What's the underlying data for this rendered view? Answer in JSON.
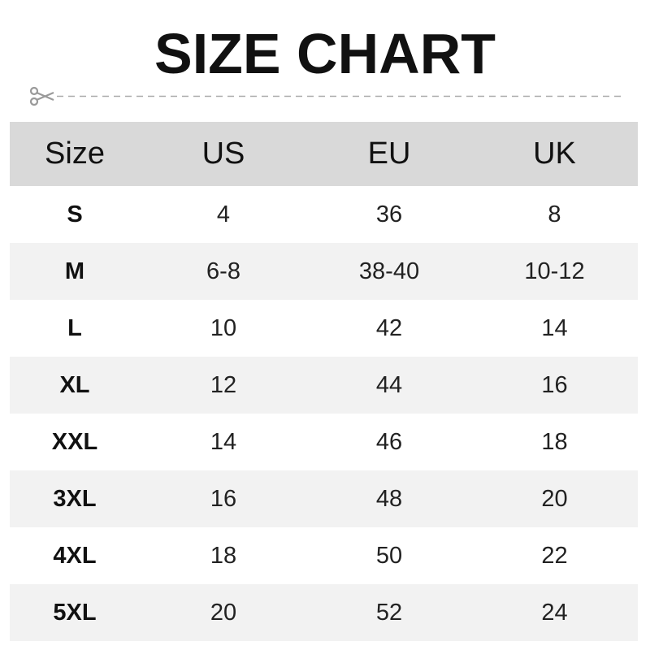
{
  "title": "SIZE CHART",
  "cut_line_icon": "scissors-icon",
  "colors": {
    "header_bg": "#d9d9d9",
    "alt_row_bg": "#f2f2f2",
    "dash": "#aaaaaa"
  },
  "table": {
    "headers": [
      "Size",
      "US",
      "EU",
      "UK"
    ],
    "rows": [
      [
        "S",
        "4",
        "36",
        "8"
      ],
      [
        "M",
        "6-8",
        "38-40",
        "10-12"
      ],
      [
        "L",
        "10",
        "42",
        "14"
      ],
      [
        "XL",
        "12",
        "44",
        "16"
      ],
      [
        "XXL",
        "14",
        "46",
        "18"
      ],
      [
        "3XL",
        "16",
        "48",
        "20"
      ],
      [
        "4XL",
        "18",
        "50",
        "22"
      ],
      [
        "5XL",
        "20",
        "52",
        "24"
      ]
    ]
  }
}
